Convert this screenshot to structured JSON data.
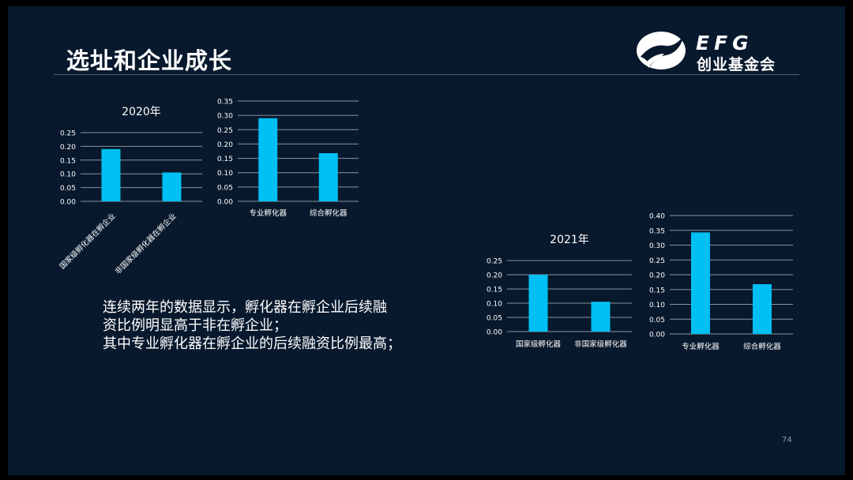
{
  "slide": {
    "title": "选址和企业成长",
    "logo": {
      "emblem": "flying-bird-emblem-icon",
      "en": "EFG",
      "cn": "创业基金会"
    },
    "body_lines": [
      "连续两年的数据显示，孵化器在孵企业后续融",
      "资比例明显高于非在孵企业；",
      "其中专业孵化器在孵企业的后续融资比例最高；"
    ],
    "page_number": "74"
  },
  "colors": {
    "bar": "#00bff3",
    "grid": "#8a929c",
    "axis_text": "#ffffff",
    "background": "#08192d"
  },
  "chart_data": [
    {
      "type": "bar",
      "title": "2020年",
      "categories": [
        "国家级孵化器在孵企业",
        "非国家级孵化器在孵企业"
      ],
      "values": [
        0.19,
        0.105
      ],
      "ylim": [
        0,
        0.25
      ],
      "yticks": [
        "0.00",
        "0.05",
        "0.10",
        "0.15",
        "0.20",
        "0.25"
      ],
      "grid": true,
      "xlabel_rotation": -45
    },
    {
      "type": "bar",
      "title": "",
      "categories": [
        "专业孵化器",
        "综合孵化器"
      ],
      "values": [
        0.29,
        0.168
      ],
      "ylim": [
        0,
        0.35
      ],
      "yticks": [
        "0.00",
        "0.05",
        "0.10",
        "0.15",
        "0.20",
        "0.25",
        "0.30",
        "0.35"
      ],
      "grid": true,
      "xlabel_rotation": 0
    },
    {
      "type": "bar",
      "title": "2021年",
      "categories": [
        "国家级孵化器",
        "非国家级孵化器"
      ],
      "values": [
        0.2,
        0.105
      ],
      "ylim": [
        0,
        0.25
      ],
      "yticks": [
        "0.00",
        "0.05",
        "0.10",
        "0.15",
        "0.20",
        "0.25"
      ],
      "grid": true,
      "xlabel_rotation": 0
    },
    {
      "type": "bar",
      "title": "",
      "categories": [
        "专业孵化器",
        "综合孵化器"
      ],
      "values": [
        0.343,
        0.168
      ],
      "ylim": [
        0,
        0.4
      ],
      "yticks": [
        "0.00",
        "0.05",
        "0.10",
        "0.15",
        "0.20",
        "0.25",
        "0.30",
        "0.35",
        "0.40"
      ],
      "grid": true,
      "xlabel_rotation": 0
    }
  ]
}
